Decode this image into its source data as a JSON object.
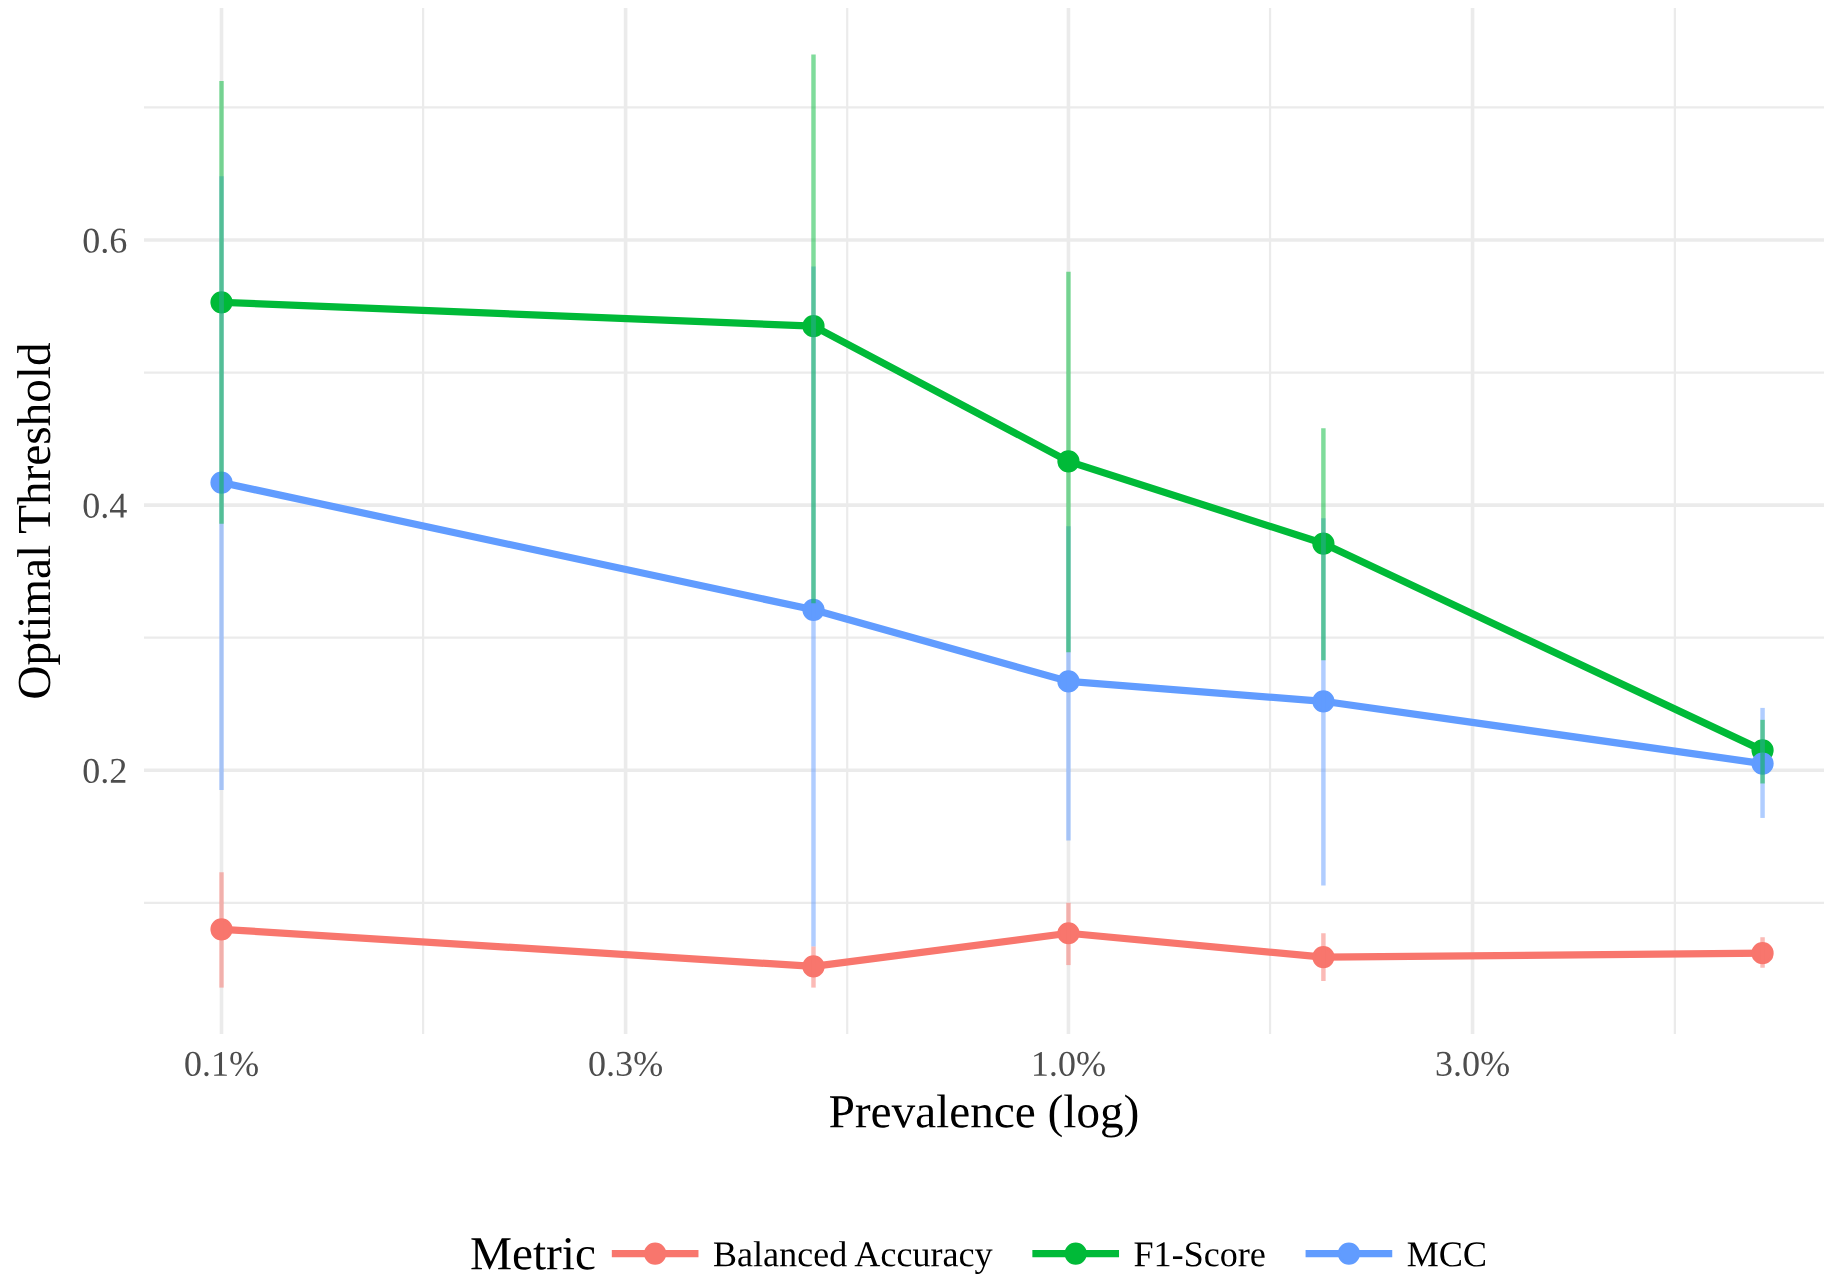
{
  "chart_data": {
    "type": "line",
    "xlabel": "Prevalence (log)",
    "ylabel": "Optimal Threshold",
    "legend_title": "Metric",
    "x": [
      0.1,
      0.5,
      1.0,
      2.0,
      6.6
    ],
    "log": "x",
    "xlim": [
      0.081,
      7.8
    ],
    "ylim": [
      0.001,
      0.775
    ],
    "xticks": [
      {
        "value": 0.1,
        "label": "0.1%"
      },
      {
        "value": 0.173,
        "label": null
      },
      {
        "value": 0.3,
        "label": "0.3%"
      },
      {
        "value": 0.548,
        "label": null
      },
      {
        "value": 1.0,
        "label": "1.0%"
      },
      {
        "value": 1.73,
        "label": null
      },
      {
        "value": 3.0,
        "label": "3.0%"
      },
      {
        "value": 5.2,
        "label": null
      }
    ],
    "yticks": [
      {
        "value": 0.1,
        "label": null
      },
      0.2,
      {
        "value": 0.3,
        "label": null
      },
      0.4,
      {
        "value": 0.5,
        "label": null
      },
      0.6,
      {
        "value": 0.7,
        "label": null
      }
    ],
    "grid": true,
    "legend": "bottom",
    "marker": "circle",
    "line_style": "solid",
    "series": [
      {
        "name": "Balanced Accuracy",
        "color": "#f8766d",
        "values": [
          0.08,
          0.052,
          0.077,
          0.059,
          0.062
        ],
        "errors": [
          [
            0.036,
            0.123
          ],
          [
            0.036,
            0.067
          ],
          [
            0.053,
            0.1
          ],
          [
            0.041,
            0.077
          ],
          [
            0.051,
            0.074
          ]
        ]
      },
      {
        "name": "F1-Score",
        "color": "#00ba38",
        "values": [
          0.553,
          0.535,
          0.433,
          0.371,
          0.215
        ],
        "errors": [
          [
            0.386,
            0.72
          ],
          [
            0.326,
            0.74
          ],
          [
            0.289,
            0.576
          ],
          [
            0.283,
            0.458
          ],
          [
            0.19,
            0.238
          ]
        ]
      },
      {
        "name": "MCC",
        "color": "#619cff",
        "values": [
          0.417,
          0.321,
          0.267,
          0.252,
          0.205
        ],
        "errors": [
          [
            0.185,
            0.648
          ],
          [
            0.067,
            0.58
          ],
          [
            0.147,
            0.384
          ],
          [
            0.113,
            0.39
          ],
          [
            0.164,
            0.247
          ]
        ]
      }
    ]
  }
}
